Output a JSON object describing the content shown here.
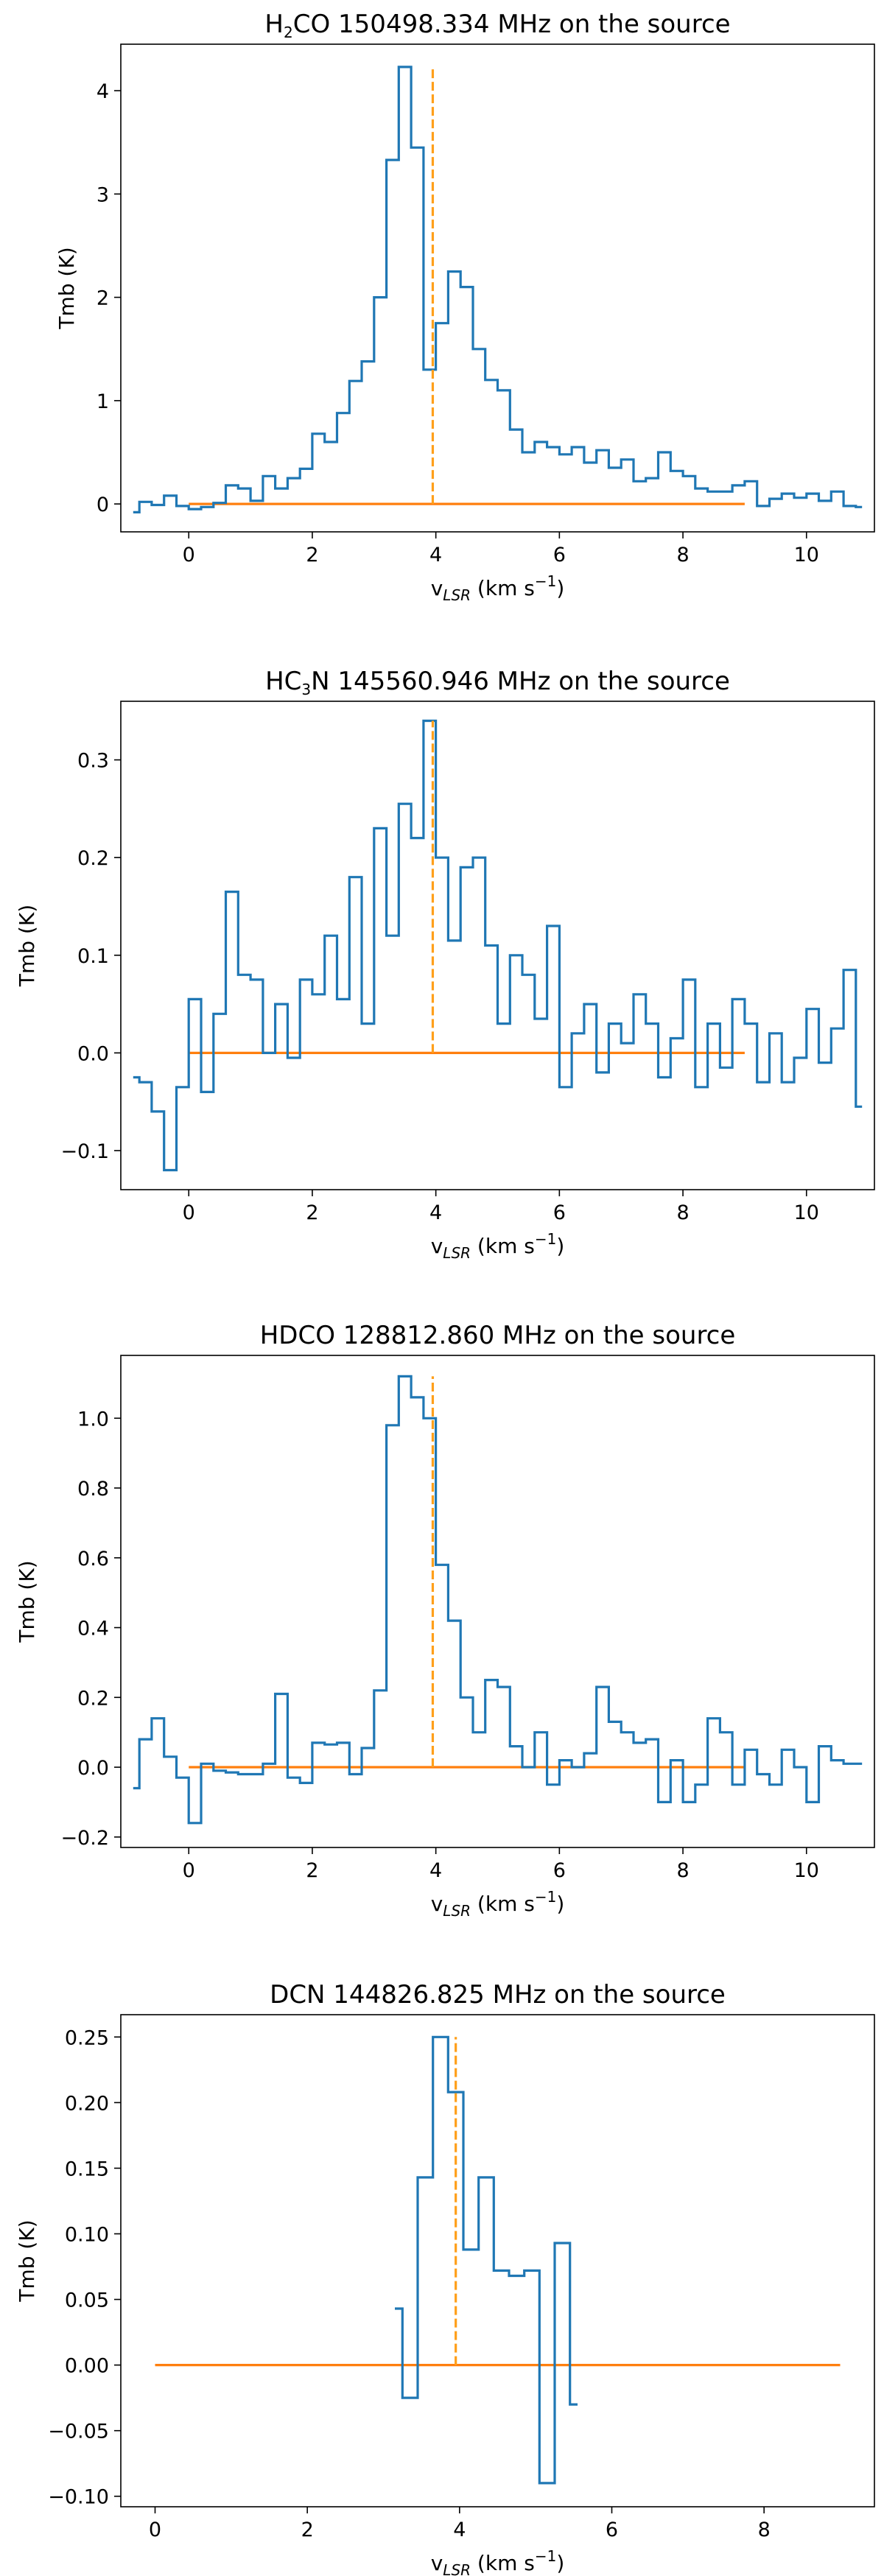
{
  "chart_data": [
    {
      "type": "line",
      "drawstyle": "steps-mid",
      "title_parts": [
        {
          "t": "H"
        },
        {
          "t": "2",
          "sub": true
        },
        {
          "t": "CO 150498.334 MHz on the source"
        }
      ],
      "xlabel_parts": [
        {
          "t": "v"
        },
        {
          "t": "LSR",
          "sub": true,
          "italic": true
        },
        {
          "t": " (km s"
        },
        {
          "t": "−1",
          "sup": true
        },
        {
          "t": ")"
        }
      ],
      "ylabel": "Tmb (K)",
      "xlim": [
        -1.1,
        11.1
      ],
      "ylim": [
        -0.27,
        4.45
      ],
      "xticks": [
        0,
        2,
        4,
        6,
        8,
        10
      ],
      "xtick_labels": [
        "0",
        "2",
        "4",
        "6",
        "8",
        "10"
      ],
      "yticks": [
        0,
        1,
        2,
        3,
        4
      ],
      "ytick_labels": [
        "0",
        "1",
        "2",
        "3",
        "4"
      ],
      "x": [
        -0.9,
        -0.7,
        -0.5,
        -0.3,
        -0.1,
        0.1,
        0.3,
        0.5,
        0.7,
        0.9,
        1.1,
        1.3,
        1.5,
        1.7,
        1.9,
        2.1,
        2.3,
        2.5,
        2.7,
        2.9,
        3.1,
        3.3,
        3.5,
        3.7,
        3.9,
        4.1,
        4.3,
        4.5,
        4.7,
        4.9,
        5.1,
        5.3,
        5.5,
        5.7,
        5.9,
        6.1,
        6.3,
        6.5,
        6.7,
        6.9,
        7.1,
        7.3,
        7.5,
        7.7,
        7.9,
        8.1,
        8.3,
        8.5,
        8.7,
        8.9,
        9.1,
        9.3,
        9.5,
        9.7,
        9.9,
        10.1,
        10.3,
        10.5,
        10.7,
        10.9
      ],
      "values": [
        -0.08,
        0.02,
        -0.01,
        0.08,
        -0.02,
        -0.05,
        -0.03,
        0.01,
        0.18,
        0.15,
        0.03,
        0.27,
        0.15,
        0.25,
        0.34,
        0.68,
        0.6,
        0.88,
        1.19,
        1.38,
        2.0,
        3.33,
        4.23,
        3.45,
        1.3,
        1.75,
        2.25,
        2.1,
        1.5,
        1.2,
        1.1,
        0.72,
        0.5,
        0.6,
        0.55,
        0.48,
        0.55,
        0.4,
        0.52,
        0.35,
        0.43,
        0.22,
        0.25,
        0.5,
        0.32,
        0.27,
        0.15,
        0.12,
        0.12,
        0.18,
        0.22,
        -0.02,
        0.05,
        0.1,
        0.06,
        0.1,
        0.03,
        0.12,
        -0.02,
        -0.03
      ],
      "baseline": {
        "x_start": 0,
        "x_end": 9,
        "y": 0
      },
      "rest_velocity": 3.95,
      "colors": {
        "spectrum": "#1f77b4",
        "baseline": "#ff7f0e",
        "marker": "#ff9f1a"
      }
    },
    {
      "type": "line",
      "drawstyle": "steps-mid",
      "title_parts": [
        {
          "t": "HC"
        },
        {
          "t": "3",
          "sub": true
        },
        {
          "t": "N 145560.946 MHz on the source"
        }
      ],
      "xlabel_parts": [
        {
          "t": "v"
        },
        {
          "t": "LSR",
          "sub": true,
          "italic": true
        },
        {
          "t": " (km s"
        },
        {
          "t": "−1",
          "sup": true
        },
        {
          "t": ")"
        }
      ],
      "ylabel": "Tmb (K)",
      "xlim": [
        -1.1,
        11.1
      ],
      "ylim": [
        -0.14,
        0.36
      ],
      "xticks": [
        0,
        2,
        4,
        6,
        8,
        10
      ],
      "xtick_labels": [
        "0",
        "2",
        "4",
        "6",
        "8",
        "10"
      ],
      "yticks": [
        -0.1,
        0.0,
        0.1,
        0.2,
        0.3
      ],
      "ytick_labels": [
        "−0.1",
        "0.0",
        "0.1",
        "0.2",
        "0.3"
      ],
      "x": [
        -0.9,
        -0.7,
        -0.5,
        -0.3,
        -0.1,
        0.1,
        0.3,
        0.5,
        0.7,
        0.9,
        1.1,
        1.3,
        1.5,
        1.7,
        1.9,
        2.1,
        2.3,
        2.5,
        2.7,
        2.9,
        3.1,
        3.3,
        3.5,
        3.7,
        3.9,
        4.1,
        4.3,
        4.5,
        4.7,
        4.9,
        5.1,
        5.3,
        5.5,
        5.7,
        5.9,
        6.1,
        6.3,
        6.5,
        6.7,
        6.9,
        7.1,
        7.3,
        7.5,
        7.7,
        7.9,
        8.1,
        8.3,
        8.5,
        8.7,
        8.9,
        9.1,
        9.3,
        9.5,
        9.7,
        9.9,
        10.1,
        10.3,
        10.5,
        10.7,
        10.9
      ],
      "values": [
        -0.025,
        -0.03,
        -0.06,
        -0.12,
        -0.035,
        0.055,
        -0.04,
        0.04,
        0.165,
        0.08,
        0.075,
        0.0,
        0.05,
        -0.005,
        0.075,
        0.06,
        0.12,
        0.055,
        0.18,
        0.03,
        0.23,
        0.12,
        0.255,
        0.22,
        0.34,
        0.2,
        0.115,
        0.19,
        0.2,
        0.11,
        0.03,
        0.1,
        0.08,
        0.035,
        0.13,
        -0.035,
        0.02,
        0.05,
        -0.02,
        0.03,
        0.01,
        0.06,
        0.03,
        -0.025,
        0.015,
        0.075,
        -0.035,
        0.03,
        -0.015,
        0.055,
        0.03,
        -0.03,
        0.02,
        -0.03,
        -0.005,
        0.045,
        -0.01,
        0.025,
        0.085,
        -0.055
      ],
      "baseline": {
        "x_start": 0,
        "x_end": 9,
        "y": 0
      },
      "rest_velocity": 3.95,
      "colors": {
        "spectrum": "#1f77b4",
        "baseline": "#ff7f0e",
        "marker": "#ff9f1a"
      }
    },
    {
      "type": "line",
      "drawstyle": "steps-mid",
      "title_parts": [
        {
          "t": "HDCO 128812.860 MHz on the source"
        }
      ],
      "xlabel_parts": [
        {
          "t": "v"
        },
        {
          "t": "LSR",
          "sub": true,
          "italic": true
        },
        {
          "t": " (km s"
        },
        {
          "t": "−1",
          "sup": true
        },
        {
          "t": ")"
        }
      ],
      "ylabel": "Tmb (K)",
      "xlim": [
        -1.1,
        11.1
      ],
      "ylim": [
        -0.23,
        1.18
      ],
      "xticks": [
        0,
        2,
        4,
        6,
        8,
        10
      ],
      "xtick_labels": [
        "0",
        "2",
        "4",
        "6",
        "8",
        "10"
      ],
      "yticks": [
        -0.2,
        0.0,
        0.2,
        0.4,
        0.6,
        0.8,
        1.0
      ],
      "ytick_labels": [
        "−0.2",
        "0.0",
        "0.2",
        "0.4",
        "0.6",
        "0.8",
        "1.0"
      ],
      "x": [
        -0.9,
        -0.7,
        -0.5,
        -0.3,
        -0.1,
        0.1,
        0.3,
        0.5,
        0.7,
        0.9,
        1.1,
        1.3,
        1.5,
        1.7,
        1.9,
        2.1,
        2.3,
        2.5,
        2.7,
        2.9,
        3.1,
        3.3,
        3.5,
        3.7,
        3.9,
        4.1,
        4.3,
        4.5,
        4.7,
        4.9,
        5.1,
        5.3,
        5.5,
        5.7,
        5.9,
        6.1,
        6.3,
        6.5,
        6.7,
        6.9,
        7.1,
        7.3,
        7.5,
        7.7,
        7.9,
        8.1,
        8.3,
        8.5,
        8.7,
        8.9,
        9.1,
        9.3,
        9.5,
        9.7,
        9.9,
        10.1,
        10.3,
        10.5,
        10.7,
        10.9
      ],
      "values": [
        -0.06,
        0.08,
        0.14,
        0.03,
        -0.03,
        -0.16,
        0.01,
        -0.01,
        -0.015,
        -0.02,
        -0.02,
        0.01,
        0.21,
        -0.03,
        -0.045,
        0.07,
        0.065,
        0.07,
        -0.02,
        0.055,
        0.22,
        0.98,
        1.12,
        1.06,
        1.0,
        0.58,
        0.42,
        0.2,
        0.1,
        0.25,
        0.23,
        0.06,
        0.0,
        0.1,
        -0.05,
        0.02,
        0.0,
        0.04,
        0.23,
        0.13,
        0.1,
        0.07,
        0.08,
        -0.1,
        0.02,
        -0.1,
        -0.05,
        0.14,
        0.1,
        -0.05,
        0.05,
        -0.02,
        -0.05,
        0.05,
        0.0,
        -0.1,
        0.06,
        0.02,
        0.01,
        0.01
      ],
      "baseline": {
        "x_start": 0,
        "x_end": 9,
        "y": 0
      },
      "rest_velocity": 3.95,
      "colors": {
        "spectrum": "#1f77b4",
        "baseline": "#ff7f0e",
        "marker": "#ff9f1a"
      }
    },
    {
      "type": "line",
      "drawstyle": "steps-mid",
      "title_parts": [
        {
          "t": "DCN 144826.825 MHz on the source"
        }
      ],
      "xlabel_parts": [
        {
          "t": "v"
        },
        {
          "t": "LSR",
          "sub": true,
          "italic": true
        },
        {
          "t": " (km s"
        },
        {
          "t": "−1",
          "sup": true
        },
        {
          "t": ")"
        }
      ],
      "ylabel": "Tmb (K)",
      "xlim": [
        -0.45,
        9.45
      ],
      "ylim": [
        -0.108,
        0.267
      ],
      "xticks": [
        0,
        2,
        4,
        6,
        8
      ],
      "xtick_labels": [
        "0",
        "2",
        "4",
        "6",
        "8"
      ],
      "yticks": [
        -0.1,
        -0.05,
        0.0,
        0.05,
        0.1,
        0.15,
        0.2,
        0.25
      ],
      "ytick_labels": [
        "−0.10",
        "−0.05",
        "0.00",
        "0.05",
        "0.10",
        "0.15",
        "0.20",
        "0.25"
      ],
      "x": [
        3.15,
        3.35,
        3.55,
        3.75,
        3.95,
        4.15,
        4.35,
        4.55,
        4.75,
        4.95,
        5.15,
        5.35,
        5.55
      ],
      "values": [
        0.043,
        -0.025,
        0.143,
        0.25,
        0.208,
        0.088,
        0.143,
        0.072,
        0.068,
        0.072,
        -0.09,
        0.093,
        -0.03
      ],
      "baseline": {
        "x_start": 0,
        "x_end": 9,
        "y": 0
      },
      "rest_velocity": 3.95,
      "colors": {
        "spectrum": "#1f77b4",
        "baseline": "#ff7f0e",
        "marker": "#ff9f1a"
      }
    }
  ]
}
